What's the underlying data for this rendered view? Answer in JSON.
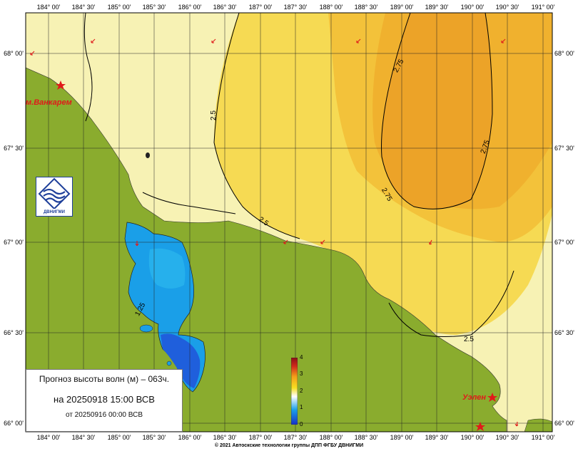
{
  "map": {
    "lon_ticks_top": [
      "184° 00'",
      "184° 30'",
      "185° 00'",
      "185° 30'",
      "186° 00'",
      "186° 30'",
      "187° 00'",
      "187° 30'",
      "188° 00'",
      "188° 30'",
      "189° 00'",
      "189° 30'",
      "190° 00'",
      "190° 30'",
      "191° 00'"
    ],
    "lon_ticks_bottom": [
      "184° 00'",
      "184° 30'",
      "185° 00'",
      "185° 30'",
      "186° 00'",
      "186° 30'",
      "187° 00'",
      "187° 30'",
      "188° 00'",
      "188° 30'",
      "189° 00'",
      "189° 30'",
      "190° 00'",
      "190° 30'",
      "191° 00'"
    ],
    "lat_ticks": [
      "68° 00'",
      "67° 30'",
      "67° 00'",
      "66° 30'",
      "66° 00'"
    ],
    "contours": [
      "2.5",
      "2.75",
      "2.75",
      "2.75",
      "2.5",
      "2.5",
      "1.25"
    ],
    "places": [
      "м.Ванкарем",
      "Уэлен"
    ]
  },
  "info": {
    "title": "Прогноз высоты волн (м) – 063ч.",
    "valid": "на 20250918 15:00 ВСВ",
    "issued": "от 20250916 00:00 ВСВ"
  },
  "legend": {
    "labels": [
      "4",
      "3",
      "2",
      "1",
      "0"
    ],
    "colors": [
      "#1630c8",
      "#1a9fe8",
      "#ffffff",
      "#f6e020",
      "#f39d19",
      "#d12b1a",
      "#8b0f16"
    ]
  },
  "logo": {
    "text": "ДВНИГМИ"
  },
  "footer": {
    "copyright": "© 2021 Автоскские технологии группы ДПП ФГБУ ДВНИГМИ"
  },
  "colors": {
    "land": "#8aac2e",
    "sea_low": "#f7f2b4",
    "sea_mid": "#f6da53",
    "sea_high": "#f0b12e"
  }
}
